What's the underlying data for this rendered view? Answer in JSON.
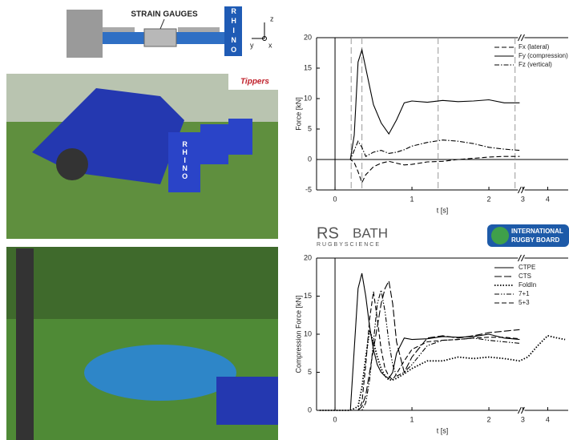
{
  "diagram": {
    "label": "STRAIN GAUGES",
    "pad": "RHINO",
    "axes": [
      "z",
      "y",
      "x"
    ]
  },
  "photos": {
    "pad": "RHINO",
    "sign": "Tippers"
  },
  "logos": {
    "rs": "RS",
    "bath": "BATH",
    "rugbyscience": "RUGBYSCIENCE",
    "irb_1": "INTERNATIONAL",
    "irb_2": "RUGBY BOARD"
  },
  "chart_data": [
    {
      "type": "line",
      "xlabel": "t [s]",
      "ylabel": "Force [kN]",
      "xlim": [
        -0.24,
        4.75
      ],
      "xticks": [
        0,
        1,
        2,
        3,
        4
      ],
      "x_break": [
        2.4,
        3
      ],
      "ylim": [
        -5,
        20
      ],
      "yticks": [
        -5,
        0,
        5,
        10,
        15,
        20
      ],
      "legend": "upper right",
      "vlines": [
        0.21,
        0.35,
        1.34,
        2.34
      ],
      "x": [
        -0.2,
        0.2,
        0.25,
        0.3,
        0.35,
        0.4,
        0.5,
        0.6,
        0.7,
        0.8,
        0.9,
        1.0,
        1.2,
        1.4,
        1.6,
        1.8,
        2.0,
        2.2,
        2.4
      ],
      "series": [
        {
          "name": "Fx (lateral)",
          "color": "#000",
          "dash": "dashed",
          "values": [
            0,
            0,
            -0.5,
            -2,
            -3.8,
            -2.5,
            -1.2,
            -0.6,
            -0.3,
            -0.6,
            -0.9,
            -0.8,
            -0.4,
            -0.3,
            0,
            0.2,
            0.4,
            0.5,
            0.5
          ]
        },
        {
          "name": "Fy (compression)",
          "color": "#000",
          "dash": "solid",
          "values": [
            0,
            0,
            4,
            16,
            18,
            15,
            9,
            6,
            4.2,
            6.5,
            9.3,
            9.6,
            9.4,
            9.7,
            9.5,
            9.6,
            9.8,
            9.3,
            9.3
          ]
        },
        {
          "name": "Fz (vertical)",
          "color": "#000",
          "dash": "dashdot",
          "values": [
            0,
            0,
            1.5,
            3,
            2,
            0.5,
            1.2,
            1.5,
            1.0,
            1.2,
            1.6,
            2.2,
            2.8,
            3.2,
            3.0,
            2.6,
            2.0,
            1.7,
            1.5
          ]
        }
      ]
    },
    {
      "type": "line",
      "xlabel": "t [s]",
      "ylabel": "Compression Force [kN]",
      "xlim": [
        -0.24,
        4.75
      ],
      "xticks": [
        0,
        1,
        2,
        3,
        4
      ],
      "x_break": [
        2.4,
        3
      ],
      "ylim": [
        0,
        20
      ],
      "yticks": [
        0,
        5,
        10,
        15,
        20
      ],
      "legend": "upper right",
      "x": [
        -0.2,
        0.2,
        0.3,
        0.35,
        0.4,
        0.45,
        0.5,
        0.55,
        0.6,
        0.65,
        0.7,
        0.75,
        0.8,
        0.9,
        1.0,
        1.2,
        1.4,
        1.6,
        1.8,
        2.0,
        2.2,
        2.4,
        3.2,
        3.6,
        4.0,
        4.4,
        4.7
      ],
      "series": [
        {
          "name": "CTPE",
          "color": "#000",
          "dash": "solid",
          "values": [
            0,
            0,
            16,
            18,
            15,
            11,
            8,
            6,
            5,
            4.5,
            4.2,
            5,
            7.5,
            9.5,
            9.3,
            9.4,
            9.7,
            9.6,
            9.7,
            10,
            9.5,
            9.3,
            null,
            null,
            null,
            null,
            null
          ]
        },
        {
          "name": "CTS",
          "color": "#000",
          "dash": "longdash",
          "values": [
            0,
            0,
            0,
            0.5,
            2,
            5,
            8,
            11,
            14,
            16,
            17,
            14,
            9,
            5,
            7,
            9.5,
            9.8,
            9.5,
            9.8,
            10.2,
            10.4,
            10.6,
            null,
            null,
            null,
            null,
            null
          ]
        },
        {
          "name": "FoldIn",
          "color": "#000",
          "dash": "dotted",
          "values": [
            0,
            0,
            0.5,
            3,
            7,
            10.5,
            9,
            7,
            5.5,
            4.5,
            4,
            4,
            4.2,
            4.8,
            5.5,
            6.5,
            6.5,
            7,
            6.8,
            7,
            6.8,
            6.5,
            7,
            8.5,
            9.8,
            9.5,
            9.3
          ]
        },
        {
          "name": "7+1",
          "color": "#000",
          "dash": "dashdotdot",
          "values": [
            0,
            0,
            0,
            0,
            1,
            4,
            9,
            14,
            15.8,
            13,
            9,
            6,
            4.5,
            5,
            6,
            8.5,
            9.2,
            9.3,
            9.5,
            9.2,
            9,
            8.8,
            null,
            null,
            null,
            null,
            null
          ]
        },
        {
          "name": "5+3",
          "color": "#000",
          "dash": "dashed",
          "values": [
            0,
            0,
            0,
            1,
            6,
            12,
            15.6,
            12,
            8,
            5.5,
            4.5,
            4,
            4.8,
            6.5,
            8,
            9,
            9.2,
            9.3,
            9.5,
            9.6,
            9.6,
            9.4,
            null,
            null,
            null,
            null,
            null
          ]
        }
      ]
    }
  ]
}
